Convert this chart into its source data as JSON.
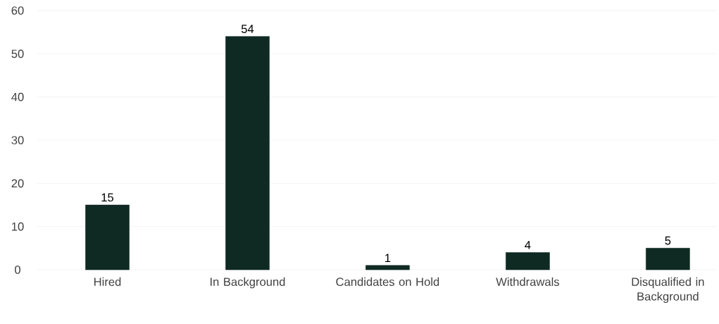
{
  "chart_data": {
    "type": "bar",
    "categories": [
      "Hired",
      "In Background",
      "Candidates on Hold",
      "Withdrawals",
      "Disqualified in Background"
    ],
    "values": [
      15,
      54,
      1,
      4,
      5
    ],
    "color": "#0f2a22",
    "ylim": [
      0,
      60
    ],
    "yticks": [
      0,
      10,
      20,
      30,
      40,
      50,
      60
    ],
    "grid": "y",
    "data_labels": true
  }
}
